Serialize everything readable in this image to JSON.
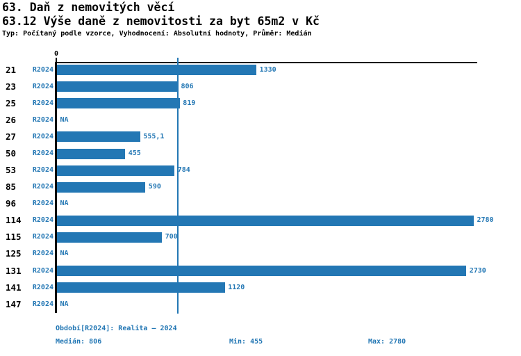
{
  "header": {
    "title": "63. Daň z nemovitých věcí",
    "subtitle": "63.12 Výše daně z nemovitosti za byt 65m2 v Kč",
    "meta": "Typ: Počítaný podle vzorce, Vyhodnocení: Absolutní hodnoty, Průměr: Medián"
  },
  "chart_data": {
    "type": "bar",
    "orientation": "horizontal",
    "title": "63.12 Výše daně z nemovitosti za byt 65m2 v Kč",
    "series_label": "R2024",
    "categories": [
      "21",
      "23",
      "25",
      "26",
      "27",
      "50",
      "53",
      "85",
      "96",
      "114",
      "115",
      "125",
      "131",
      "141",
      "147"
    ],
    "values": [
      1330,
      806,
      819,
      null,
      555.1,
      455,
      784,
      590,
      null,
      2780,
      700,
      null,
      2730,
      1120,
      null
    ],
    "value_labels": [
      "1330",
      "806",
      "819",
      "NA",
      "555,1",
      "455",
      "784",
      "590",
      "NA",
      "2780",
      "700",
      "NA",
      "2730",
      "1120",
      "NA"
    ],
    "na_label": "NA",
    "zero_label": "0",
    "xlim": [
      0,
      2780
    ],
    "median_value": 806,
    "grid": false,
    "legend": "none",
    "bar_color": "#2377b4"
  },
  "footer": {
    "period": "Období[R2024]: Realita – 2024",
    "median": "Medián: 806",
    "min": "Min: 455",
    "max": "Max: 2780"
  },
  "colors": {
    "accent": "#2377b4",
    "text": "#000000",
    "background": "#ffffff"
  }
}
